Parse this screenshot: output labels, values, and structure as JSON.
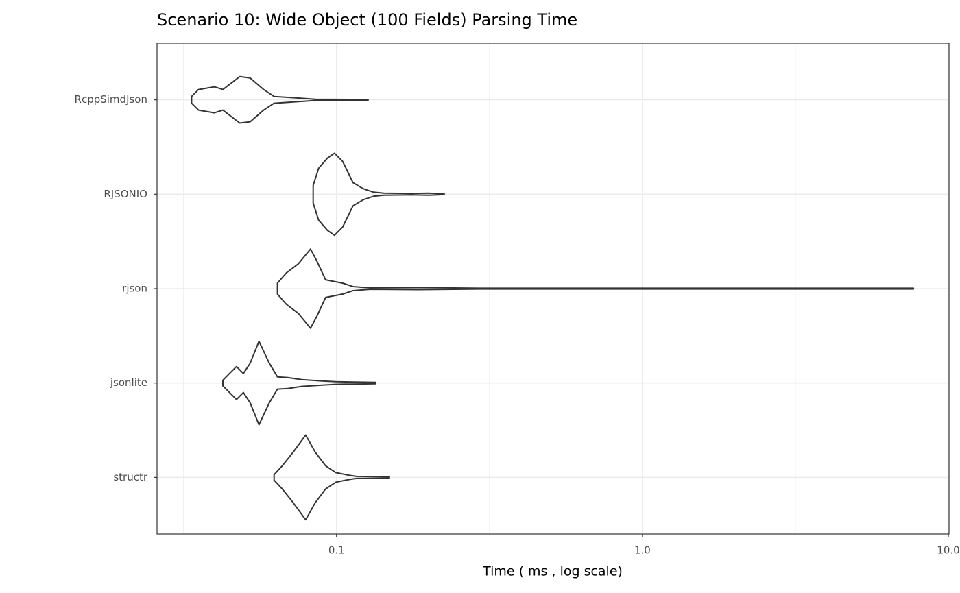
{
  "chart_data": {
    "type": "violin",
    "title": "Scenario 10: Wide Object (100 Fields) Parsing Time",
    "x_label": "Time ( ms , log scale)",
    "log_x": true,
    "grid": true,
    "color": "#333333",
    "xlim": [
      0.0259,
      10.05
    ],
    "xticks": [
      0.1,
      {
        "value": 1,
        "label": "1.0"
      },
      {
        "value": 10,
        "label": "10.0"
      }
    ],
    "minor_xticks": [
      0.0316,
      0.3162,
      3.162
    ],
    "violins": [
      {
        "name": "RcppSimdJson",
        "x": [
          0.0336,
          0.0354,
          0.0399,
          0.0425,
          0.0483,
          0.0522,
          0.0578,
          0.0625,
          0.073,
          0.0852,
          0.1268
        ],
        "width": [
          0.036,
          0.109,
          0.138,
          0.109,
          0.246,
          0.232,
          0.109,
          0.036,
          0.022,
          0.007,
          0.004
        ]
      },
      {
        "name": "RJSONIO",
        "x": [
          0.0839,
          0.0874,
          0.0935,
          0.0985,
          0.1047,
          0.1132,
          0.1223,
          0.1322,
          0.1428,
          0.1755,
          0.1996,
          0.2249
        ],
        "width": [
          0.094,
          0.275,
          0.384,
          0.435,
          0.348,
          0.123,
          0.058,
          0.022,
          0.011,
          0.007,
          0.011,
          0.004
        ]
      },
      {
        "name": "rjson",
        "x": [
          0.0641,
          0.0686,
          0.0749,
          0.0822,
          0.0861,
          0.0921,
          0.1047,
          0.1132,
          0.1288,
          0.1849,
          0.2942,
          7.69
        ],
        "width": [
          0.058,
          0.167,
          0.261,
          0.42,
          0.297,
          0.094,
          0.058,
          0.022,
          0.007,
          0.011,
          0.004,
          0.004
        ]
      },
      {
        "name": "jsonlite",
        "x": [
          0.0425,
          0.0447,
          0.0471,
          0.0496,
          0.0522,
          0.0558,
          0.0603,
          0.0641,
          0.0693,
          0.0769,
          0.0897,
          0.0995,
          0.1342
        ],
        "width": [
          0.029,
          0.101,
          0.174,
          0.101,
          0.21,
          0.442,
          0.21,
          0.065,
          0.058,
          0.036,
          0.022,
          0.014,
          0.007
        ]
      },
      {
        "name": "structr",
        "x": [
          0.0625,
          0.0665,
          0.0722,
          0.0793,
          0.0852,
          0.0921,
          0.0995,
          0.1103,
          0.1162,
          0.1488
        ],
        "width": [
          0.029,
          0.123,
          0.268,
          0.449,
          0.268,
          0.123,
          0.051,
          0.022,
          0.011,
          0.007
        ]
      }
    ]
  }
}
